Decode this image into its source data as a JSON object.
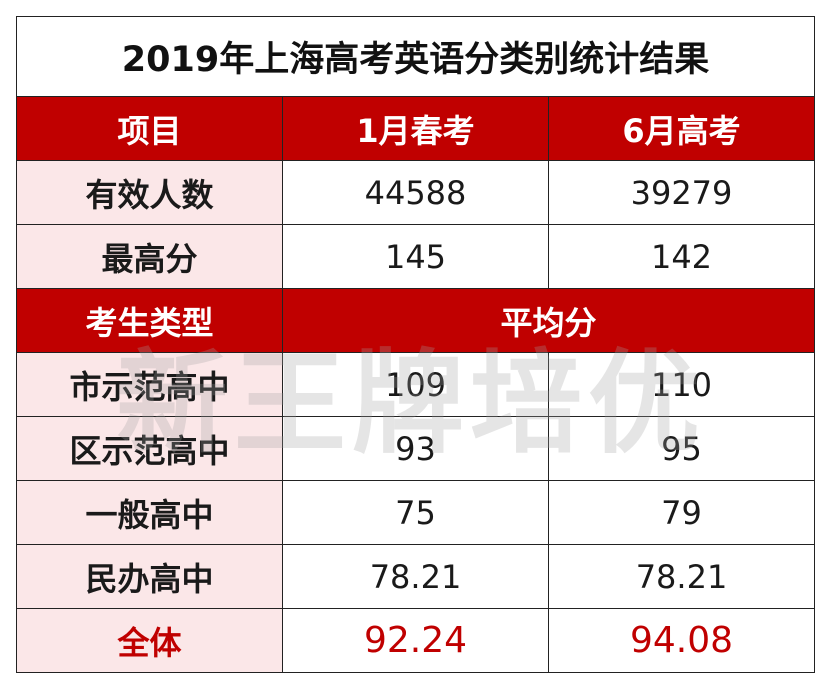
{
  "title": "2019年上海高考英语分类别统计结果",
  "header": {
    "item": "项目",
    "jan": "1月春考",
    "jun": "6月高考"
  },
  "rows_top": [
    {
      "label": "有效人数",
      "jan": "44588",
      "jun": "39279"
    },
    {
      "label": "最高分",
      "jan": "145",
      "jun": "142"
    }
  ],
  "subheader": {
    "type": "考生类型",
    "avg": "平均分"
  },
  "rows_avg": [
    {
      "label": "市示范高中",
      "jan": "109",
      "jun": "110"
    },
    {
      "label": "区示范高中",
      "jan": "93",
      "jun": "95"
    },
    {
      "label": "一般高中",
      "jan": "75",
      "jun": "79"
    },
    {
      "label": "民办高中",
      "jan": "78.21",
      "jun": "78.21"
    }
  ],
  "total": {
    "label": "全体",
    "jan": "92.24",
    "jun": "94.08"
  },
  "watermark": "新王牌培优",
  "colors": {
    "header_bg": "#c00000",
    "label_bg": "#fbe7e8",
    "accent_text": "#c00000"
  }
}
